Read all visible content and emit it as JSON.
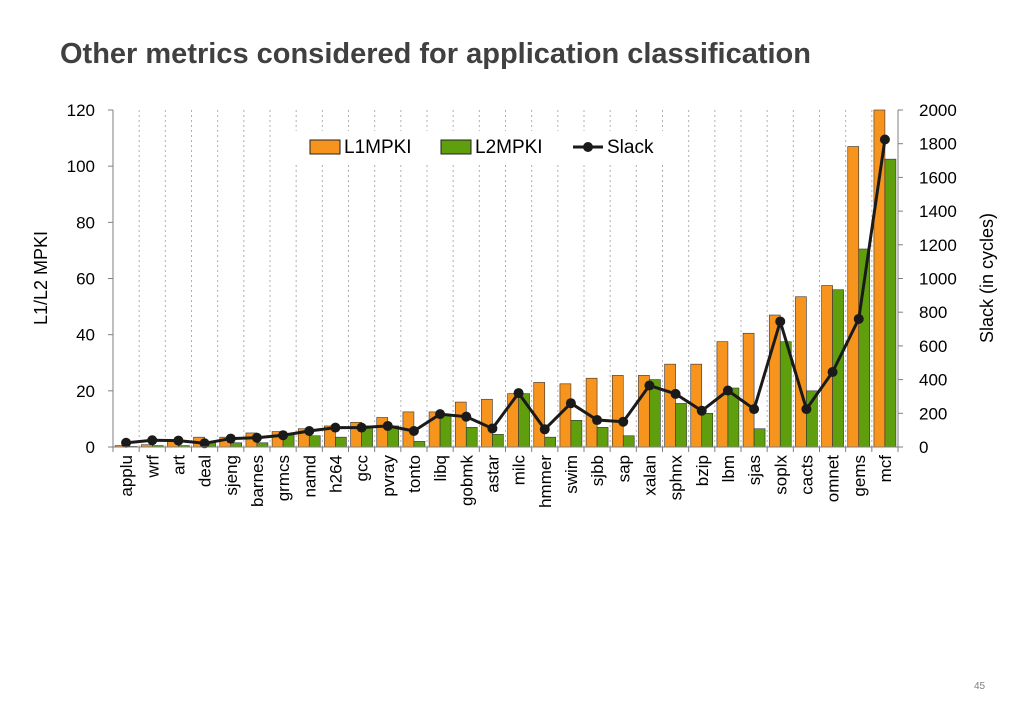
{
  "slide": {
    "title": "Other metrics considered for application classification",
    "page_number": "45"
  },
  "chart_data": {
    "type": "bar",
    "categories": [
      "applu",
      "wrf",
      "art",
      "deal",
      "sjeng",
      "barnes",
      "grmcs",
      "namd",
      "h264",
      "gcc",
      "pvray",
      "tonto",
      "libq",
      "gobmk",
      "astar",
      "milc",
      "hmmer",
      "swim",
      "sjbb",
      "sap",
      "xalan",
      "sphnx",
      "bzip",
      "lbm",
      "sjas",
      "soplx",
      "cacts",
      "omnet",
      "gems",
      "mcf"
    ],
    "series": [
      {
        "name": "L1MPKI",
        "type": "bar",
        "axis": "left",
        "color": "#F7941D",
        "values": [
          0.5,
          0.8,
          2.5,
          3.5,
          3.5,
          5,
          5.5,
          6.5,
          7.5,
          8.8,
          10.5,
          12.5,
          12.5,
          16,
          17,
          19,
          23,
          22.5,
          24.5,
          25.5,
          25.5,
          29.5,
          29.5,
          37.5,
          40.5,
          47,
          53.5,
          57.5,
          107,
          121
        ]
      },
      {
        "name": "L2MPKI",
        "type": "bar",
        "axis": "left",
        "color": "#5F9F0D",
        "values": [
          0.2,
          0.5,
          0.5,
          1.5,
          1.5,
          1.5,
          4.5,
          4,
          3.5,
          7.5,
          7.5,
          2,
          11.5,
          7,
          4.5,
          19,
          3.5,
          9.5,
          7,
          4,
          24,
          15.5,
          12,
          21,
          6.5,
          37.5,
          20,
          56,
          70.5,
          102.5
        ]
      },
      {
        "name": "Slack",
        "type": "line",
        "axis": "right",
        "color": "#1a1a1a",
        "values": [
          25,
          40,
          38,
          22,
          50,
          55,
          70,
          95,
          115,
          115,
          125,
          95,
          195,
          180,
          110,
          320,
          105,
          260,
          160,
          150,
          365,
          315,
          215,
          335,
          225,
          745,
          225,
          445,
          760,
          1825
        ]
      }
    ],
    "left_axis": {
      "label": "L1/L2 MPKI",
      "range": [
        0,
        120
      ],
      "ticks": [
        0,
        20,
        40,
        60,
        80,
        100,
        120
      ]
    },
    "right_axis": {
      "label": "Slack (in cycles)",
      "range": [
        0,
        2000
      ],
      "ticks": [
        0,
        200,
        400,
        600,
        800,
        1000,
        1200,
        1400,
        1600,
        1800,
        2000
      ]
    },
    "grid": {
      "vertical_dotted": true,
      "horizontal": false
    },
    "legend": {
      "placement": "top-center",
      "entries": [
        "L1MPKI",
        "L2MPKI",
        "Slack"
      ]
    }
  }
}
